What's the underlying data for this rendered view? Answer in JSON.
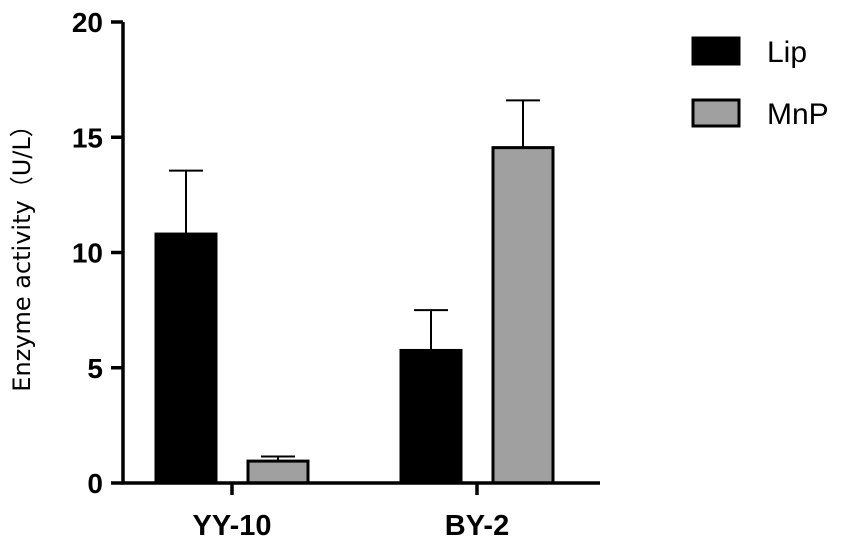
{
  "chart_data": {
    "type": "bar",
    "title": "",
    "xlabel": "",
    "ylabel": "Enzyme activity（U/L）",
    "ylim": [
      0,
      20
    ],
    "yticks": [
      "0",
      "5",
      "10",
      "15",
      "20"
    ],
    "categories": [
      "YY-10",
      "BY-2"
    ],
    "series": [
      {
        "name": "Lip",
        "color": "#000000",
        "values": [
          10.8,
          5.75
        ],
        "errors": [
          2.75,
          1.75
        ]
      },
      {
        "name": "MnP",
        "color": "#a0a0a0",
        "values": [
          0.95,
          14.55
        ],
        "errors": [
          0.2,
          2.05
        ]
      }
    ],
    "grid": false,
    "error_bars": true,
    "legend": "top-right"
  }
}
